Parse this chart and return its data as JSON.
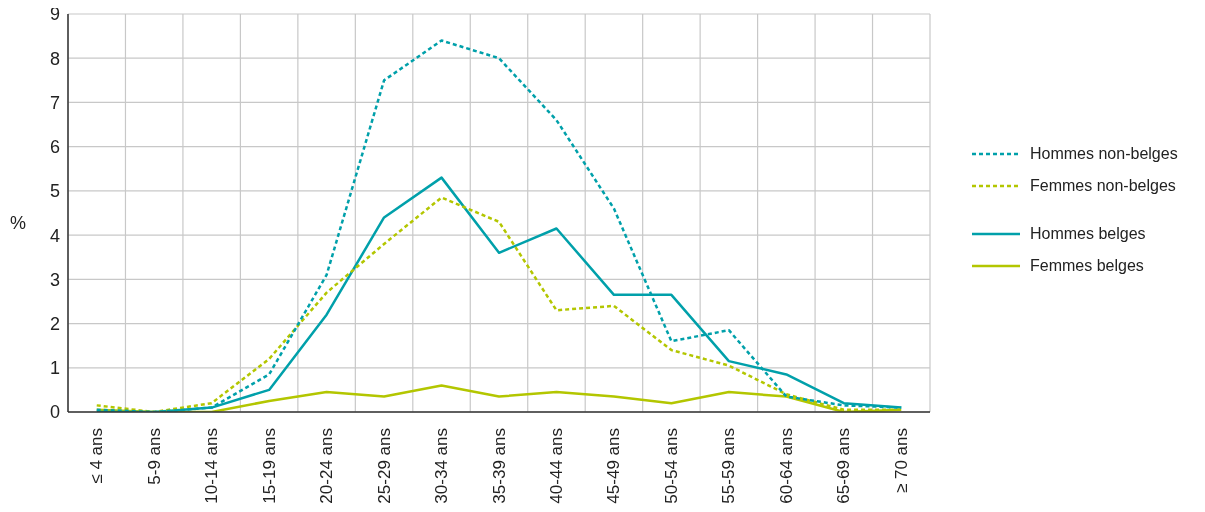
{
  "chart_data": {
    "type": "line",
    "ylabel": "%",
    "categories": [
      "≤ 4 ans",
      "5-9 ans",
      "10-14 ans",
      "15-19 ans",
      "20-24 ans",
      "25-29 ans",
      "30-34 ans",
      "35-39 ans",
      "40-44 ans",
      "45-49 ans",
      "50-54 ans",
      "55-59 ans",
      "60-64 ans",
      "65-69 ans",
      "≥ 70 ans"
    ],
    "ylim": [
      0,
      9
    ],
    "yticks": [
      0,
      1,
      2,
      3,
      4,
      5,
      6,
      7,
      8,
      9
    ],
    "grid": true,
    "legend": "right",
    "marker": "none",
    "series": [
      {
        "name": "Hommes non-belges",
        "color": "#00a0aa",
        "line_style": "dashed",
        "values": [
          0.05,
          0,
          0.1,
          0.85,
          3.1,
          7.5,
          8.4,
          8.0,
          6.6,
          4.6,
          1.6,
          1.85,
          0.35,
          0.15,
          0.1
        ]
      },
      {
        "name": "Femmes non-belges",
        "color": "#b3c600",
        "line_style": "dashed",
        "values": [
          0.15,
          0,
          0.2,
          1.2,
          2.7,
          3.8,
          4.85,
          4.3,
          2.3,
          2.4,
          1.4,
          1.05,
          0.4,
          0.05,
          0.05
        ]
      },
      {
        "name": "Hommes belges",
        "color": "#00a0aa",
        "line_style": "solid",
        "values": [
          0,
          0,
          0.1,
          0.5,
          2.2,
          4.4,
          5.3,
          3.6,
          4.15,
          2.65,
          2.65,
          1.15,
          0.85,
          0.2,
          0.1
        ]
      },
      {
        "name": "Femmes belges",
        "color": "#b3c600",
        "line_style": "solid",
        "values": [
          0.05,
          0,
          0,
          0.25,
          0.45,
          0.35,
          0.6,
          0.35,
          0.45,
          0.35,
          0.2,
          0.45,
          0.35,
          0,
          0.05
        ]
      }
    ]
  }
}
